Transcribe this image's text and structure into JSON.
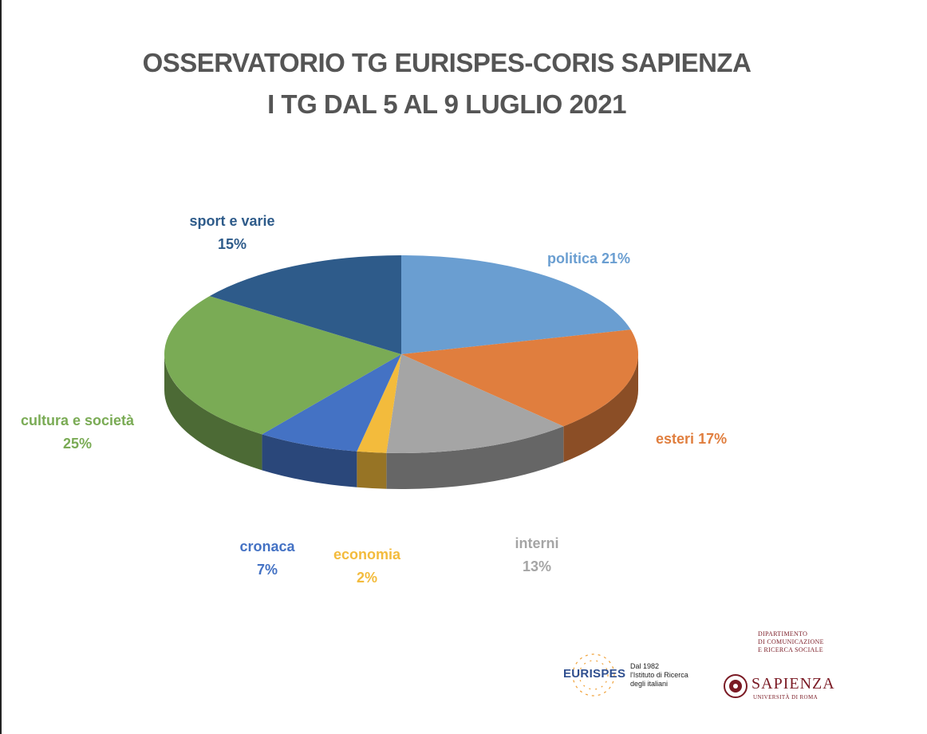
{
  "chart_data": {
    "type": "pie",
    "title": "OSSERVATORIO TG EURISPES-CORIS SAPIENZA",
    "subtitle": "I TG DAL 5 AL 9 LUGLIO 2021",
    "slices": [
      {
        "label": "politica",
        "value": 21,
        "value_text": "21%",
        "color": "#6a9ed1"
      },
      {
        "label": "esteri",
        "value": 17,
        "value_text": "17%",
        "color": "#e07e3e"
      },
      {
        "label": "interni",
        "value": 13,
        "value_text": "13%",
        "color": "#a5a5a5"
      },
      {
        "label": "economia",
        "value": 2,
        "value_text": "2%",
        "color": "#f3bb3c"
      },
      {
        "label": "cronaca",
        "value": 7,
        "value_text": "7%",
        "color": "#4472c4"
      },
      {
        "label": "cultura e società",
        "value": 25,
        "value_text": "25%",
        "color": "#7aab55"
      },
      {
        "label": "sport e varie",
        "value": 15,
        "value_text": "15%",
        "color": "#2e5b8a"
      }
    ]
  },
  "logos": {
    "eurispes": {
      "name": "EURISPES",
      "tagline": [
        "Dal 1982",
        "l'Istituto di Ricerca",
        "degli italiani"
      ]
    },
    "sapienza": {
      "dept": [
        "DIPARTIMENTO",
        "DI COMUNICAZIONE",
        "E RICERCA SOCIALE"
      ],
      "name": "SAPIENZA",
      "sub": "UNIVERSITÀ DI ROMA"
    }
  }
}
